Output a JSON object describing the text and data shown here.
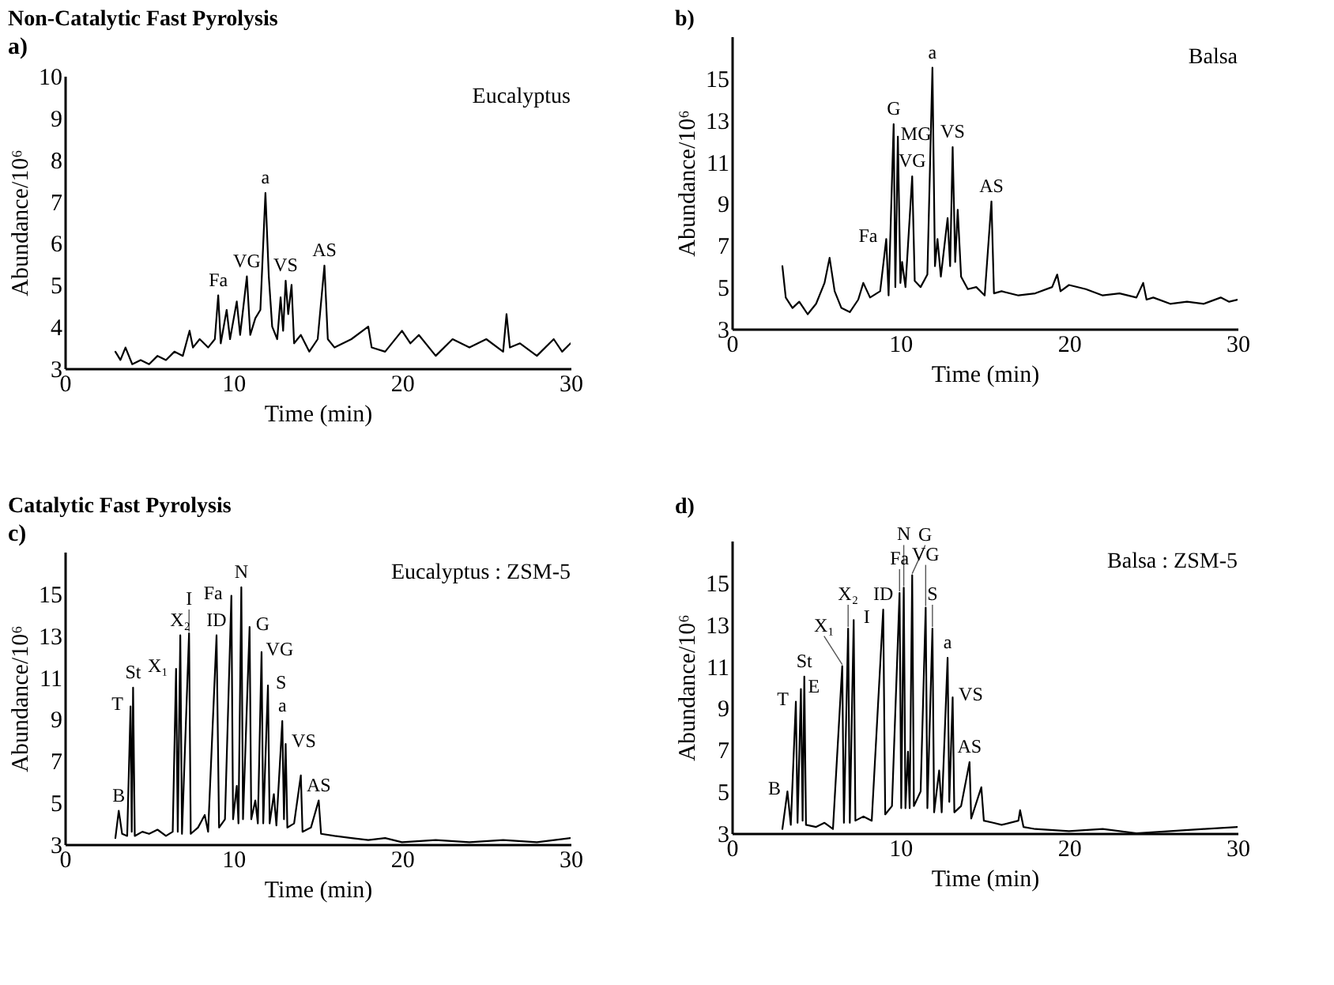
{
  "chart_data": [
    {
      "type": "line",
      "title": "Non-Catalytic Fast Pyrolysis",
      "subtitle": "a)",
      "xlabel": "Time (min)",
      "ylabel": "Abundance/10⁶",
      "xlim": [
        0,
        30
      ],
      "xticks": [
        0,
        10,
        20,
        30
      ],
      "ylim": [
        3,
        10
      ],
      "yticks": [
        3,
        4,
        5,
        6,
        7,
        8,
        9,
        10
      ],
      "x": [
        3.0,
        3.3,
        3.6,
        4.0,
        4.5,
        5.0,
        5.5,
        6.0,
        6.5,
        7.0,
        7.4,
        7.6,
        8.0,
        8.5,
        8.9,
        9.1,
        9.25,
        9.6,
        9.8,
        10.2,
        10.4,
        10.8,
        11.0,
        11.3,
        11.6,
        11.9,
        12.1,
        12.3,
        12.6,
        12.8,
        12.95,
        13.1,
        13.25,
        13.45,
        13.6,
        14.0,
        14.5,
        15.0,
        15.4,
        15.6,
        16.0,
        17.0,
        18.0,
        18.2,
        19.0,
        20.0,
        20.5,
        21.0,
        22.0,
        23.0,
        24.0,
        25.0,
        26.0,
        26.2,
        26.4,
        27.0,
        28.0,
        29.0,
        29.5,
        30.0
      ],
      "series": [
        {
          "color": "#000000",
          "values": [
            3.4,
            3.2,
            3.5,
            3.1,
            3.2,
            3.1,
            3.3,
            3.2,
            3.4,
            3.3,
            3.9,
            3.5,
            3.7,
            3.5,
            3.7,
            4.75,
            3.6,
            4.4,
            3.7,
            4.6,
            3.8,
            5.2,
            3.8,
            4.2,
            4.4,
            7.2,
            5.2,
            4.0,
            3.7,
            4.7,
            3.9,
            5.1,
            4.3,
            5.0,
            3.6,
            3.8,
            3.4,
            3.7,
            5.46,
            3.7,
            3.5,
            3.7,
            4.0,
            3.5,
            3.4,
            3.9,
            3.6,
            3.8,
            3.3,
            3.7,
            3.5,
            3.7,
            3.4,
            4.3,
            3.5,
            3.6,
            3.3,
            3.7,
            3.4,
            3.6
          ]
        }
      ],
      "annotations": [
        "Eucalyptus",
        {
          "text": "Fa",
          "x": 9.1,
          "y": 4.75
        },
        {
          "text": "VG",
          "x": 10.8,
          "y": 5.2
        },
        {
          "text": "a",
          "x": 11.9,
          "y": 7.2
        },
        {
          "text": "VS",
          "x": 13.1,
          "y": 5.1
        },
        {
          "text": "AS",
          "x": 15.4,
          "y": 5.46
        }
      ]
    },
    {
      "type": "line",
      "title": "b)",
      "xlabel": "Time (min)",
      "ylabel": "Abundance/10⁶",
      "xlim": [
        0,
        30
      ],
      "xticks": [
        0,
        10,
        20,
        30
      ],
      "ylim": [
        3,
        17
      ],
      "yticks": [
        3,
        5,
        7,
        9,
        11,
        13,
        15
      ],
      "x": [
        3.0,
        3.2,
        3.6,
        4.0,
        4.5,
        5.0,
        5.5,
        5.8,
        6.1,
        6.5,
        7.0,
        7.5,
        7.8,
        8.2,
        8.8,
        9.16,
        9.3,
        9.6,
        9.7,
        9.85,
        10.0,
        10.1,
        10.3,
        10.7,
        10.85,
        11.2,
        11.6,
        11.9,
        12.05,
        12.2,
        12.4,
        12.8,
        12.95,
        13.1,
        13.25,
        13.4,
        13.6,
        14.0,
        14.5,
        15.0,
        15.4,
        15.55,
        16.0,
        17.0,
        18.0,
        19.0,
        19.3,
        19.5,
        20.0,
        21.0,
        22.0,
        23.0,
        24.0,
        24.4,
        24.6,
        25.0,
        26.0,
        27.0,
        28.0,
        29.0,
        29.5,
        30.0
      ],
      "series": [
        {
          "color": "#000000",
          "values": [
            6.0,
            4.5,
            4.0,
            4.3,
            3.7,
            4.2,
            5.2,
            6.4,
            4.8,
            4.0,
            3.8,
            4.4,
            5.2,
            4.5,
            4.8,
            7.3,
            4.6,
            12.8,
            5.0,
            12.2,
            5.2,
            6.2,
            5.0,
            10.3,
            5.3,
            5.0,
            5.6,
            15.5,
            6.0,
            7.3,
            5.5,
            8.3,
            6.0,
            11.7,
            6.2,
            8.7,
            5.5,
            4.9,
            5.0,
            4.6,
            9.1,
            4.7,
            4.8,
            4.6,
            4.7,
            5.0,
            5.6,
            4.8,
            5.1,
            4.9,
            4.6,
            4.7,
            4.5,
            5.2,
            4.4,
            4.5,
            4.2,
            4.3,
            4.2,
            4.5,
            4.3,
            4.4
          ]
        }
      ],
      "annotations": [
        "Balsa",
        {
          "text": "VG",
          "x": 10.7,
          "y": 10.3
        },
        {
          "text": "MG",
          "x": 9.85,
          "y": 12.2
        },
        {
          "text": "a",
          "x": 11.9,
          "y": 15.5
        },
        {
          "text": "G",
          "x": 9.6,
          "y": 12.8
        },
        {
          "text": "VS",
          "x": 13.1,
          "y": 11.7
        },
        {
          "text": "AS",
          "x": 15.4,
          "y": 9.1
        },
        {
          "text": "Fa",
          "x": 9.16,
          "y": 7.3
        }
      ]
    },
    {
      "type": "line",
      "title": "Catalytic Fast Pyrolysis",
      "subtitle": "c)",
      "xlabel": "Time (min)",
      "ylabel": "Abundance/10⁶",
      "xlim": [
        0,
        30
      ],
      "xticks": [
        0,
        10,
        20,
        30
      ],
      "ylim": [
        3,
        17
      ],
      "yticks": [
        3,
        5,
        7,
        9,
        11,
        13,
        15
      ],
      "x": [
        3.0,
        3.2,
        3.4,
        3.7,
        3.9,
        3.97,
        4.05,
        4.15,
        4.6,
        5.0,
        5.5,
        6.0,
        6.4,
        6.6,
        6.7,
        6.85,
        6.95,
        7.37,
        7.47,
        7.9,
        8.3,
        8.5,
        9.0,
        9.15,
        9.5,
        9.88,
        9.98,
        10.2,
        10.3,
        10.47,
        10.57,
        10.96,
        11.06,
        11.3,
        11.45,
        11.67,
        11.77,
        12.05,
        12.15,
        12.4,
        12.55,
        12.9,
        13.0,
        13.1,
        13.2,
        13.6,
        14.0,
        14.1,
        14.6,
        15.06,
        15.2,
        16.0,
        17.0,
        18.0,
        19.0,
        20.0,
        22.0,
        24.0,
        26.0,
        28.0,
        30.0
      ],
      "series": [
        {
          "color": "#000000",
          "values": [
            3.3,
            4.6,
            3.5,
            3.4,
            9.6,
            3.6,
            10.5,
            3.4,
            3.6,
            3.5,
            3.7,
            3.4,
            3.6,
            11.4,
            3.6,
            13.0,
            3.5,
            13.1,
            3.5,
            3.8,
            4.4,
            3.6,
            13.0,
            3.8,
            4.2,
            14.9,
            4.2,
            5.8,
            4.0,
            15.3,
            4.2,
            13.4,
            4.2,
            5.1,
            4.0,
            12.2,
            4.0,
            10.6,
            4.0,
            5.4,
            3.9,
            8.9,
            4.2,
            7.8,
            3.8,
            4.0,
            6.3,
            3.6,
            3.8,
            5.1,
            3.5,
            3.4,
            3.3,
            3.2,
            3.3,
            3.1,
            3.2,
            3.1,
            3.2,
            3.1,
            3.3
          ]
        }
      ],
      "annotations": [
        "Eucalyptus : ZSM-5",
        {
          "text": "T",
          "x": 3.9,
          "y": 9.6
        },
        {
          "text": "St",
          "x": 4.05,
          "y": 10.5
        },
        {
          "text": "B",
          "x": 3.2,
          "y": 4.6
        },
        {
          "text": "X₁",
          "x": 6.6,
          "y": 11.4
        },
        {
          "text": "X₂",
          "x": 6.85,
          "y": 13.0
        },
        {
          "text": "I",
          "x": 7.37,
          "y": 13.1
        },
        {
          "text": "ID",
          "x": 9.0,
          "y": 13.0
        },
        {
          "text": "Fa",
          "x": 9.88,
          "y": 14.9
        },
        {
          "text": "N",
          "x": 10.47,
          "y": 15.3
        },
        {
          "text": "G",
          "x": 10.96,
          "y": 13.4
        },
        {
          "text": "VG",
          "x": 11.67,
          "y": 12.2
        },
        {
          "text": "S",
          "x": 12.05,
          "y": 10.6
        },
        {
          "text": "a",
          "x": 12.9,
          "y": 8.9
        },
        {
          "text": "VS",
          "x": 13.1,
          "y": 7.8
        },
        {
          "text": "AS",
          "x": 15.06,
          "y": 5.1
        }
      ]
    },
    {
      "type": "line",
      "title": "d)",
      "xlabel": "Time (min)",
      "ylabel": "Abundance/10⁶",
      "xlim": [
        0,
        30
      ],
      "xticks": [
        0,
        10,
        20,
        30
      ],
      "ylim": [
        3,
        17
      ],
      "yticks": [
        3,
        5,
        7,
        9,
        11,
        13,
        15
      ],
      "x": [
        3.0,
        3.3,
        3.5,
        3.8,
        3.9,
        4.1,
        4.2,
        4.3,
        4.4,
        5.0,
        5.5,
        6.0,
        6.55,
        6.65,
        6.9,
        7.0,
        7.23,
        7.33,
        7.8,
        8.3,
        8.98,
        9.1,
        9.5,
        9.95,
        10.05,
        10.2,
        10.3,
        10.45,
        10.55,
        10.7,
        10.8,
        11.2,
        11.5,
        11.6,
        11.9,
        12.0,
        12.3,
        12.45,
        12.8,
        12.9,
        13.1,
        13.2,
        13.6,
        14.1,
        14.2,
        14.8,
        14.95,
        15.5,
        16.0,
        17.0,
        17.1,
        17.3,
        18.0,
        20.0,
        22.0,
        24.0,
        26.0,
        28.0,
        30.0
      ],
      "series": [
        {
          "color": "#000000",
          "values": [
            3.2,
            5.0,
            3.4,
            9.3,
            3.5,
            9.9,
            3.6,
            10.5,
            3.4,
            3.3,
            3.5,
            3.2,
            11.0,
            3.5,
            12.8,
            3.5,
            13.2,
            3.6,
            3.8,
            3.6,
            13.7,
            3.9,
            4.3,
            14.5,
            4.2,
            14.75,
            4.2,
            6.9,
            4.2,
            15.35,
            4.3,
            5.0,
            13.8,
            4.2,
            12.8,
            4.0,
            6.0,
            4.0,
            11.4,
            4.5,
            9.5,
            4.0,
            4.3,
            6.4,
            3.7,
            5.2,
            3.6,
            3.5,
            3.4,
            3.6,
            4.1,
            3.3,
            3.2,
            3.1,
            3.2,
            3.0,
            3.1,
            3.2,
            3.3
          ]
        }
      ],
      "annotations": [
        "Balsa : ZSM-5",
        {
          "text": "T",
          "x": 3.8,
          "y": 9.3
        },
        {
          "text": "E",
          "x": 4.1,
          "y": 9.9
        },
        {
          "text": "St",
          "x": 4.3,
          "y": 10.5
        },
        {
          "text": "B",
          "x": 3.3,
          "y": 5.0
        },
        {
          "text": "X₁",
          "x": 6.55,
          "y": 11.0
        },
        {
          "text": "X₂",
          "x": 6.9,
          "y": 12.8
        },
        {
          "text": "I",
          "x": 7.23,
          "y": 13.2
        },
        {
          "text": "ID",
          "x": 8.98,
          "y": 13.7
        },
        {
          "text": "Fa",
          "x": 9.95,
          "y": 14.5
        },
        {
          "text": "N",
          "x": 10.2,
          "y": 14.75
        },
        {
          "text": "G",
          "x": 10.7,
          "y": 15.35
        },
        {
          "text": "VG",
          "x": 11.5,
          "y": 13.8
        },
        {
          "text": "S",
          "x": 11.9,
          "y": 12.8
        },
        {
          "text": "a",
          "x": 12.8,
          "y": 11.4
        },
        {
          "text": "VS",
          "x": 13.1,
          "y": 9.5
        },
        {
          "text": "AS",
          "x": 14.1,
          "y": 6.4
        }
      ]
    }
  ]
}
